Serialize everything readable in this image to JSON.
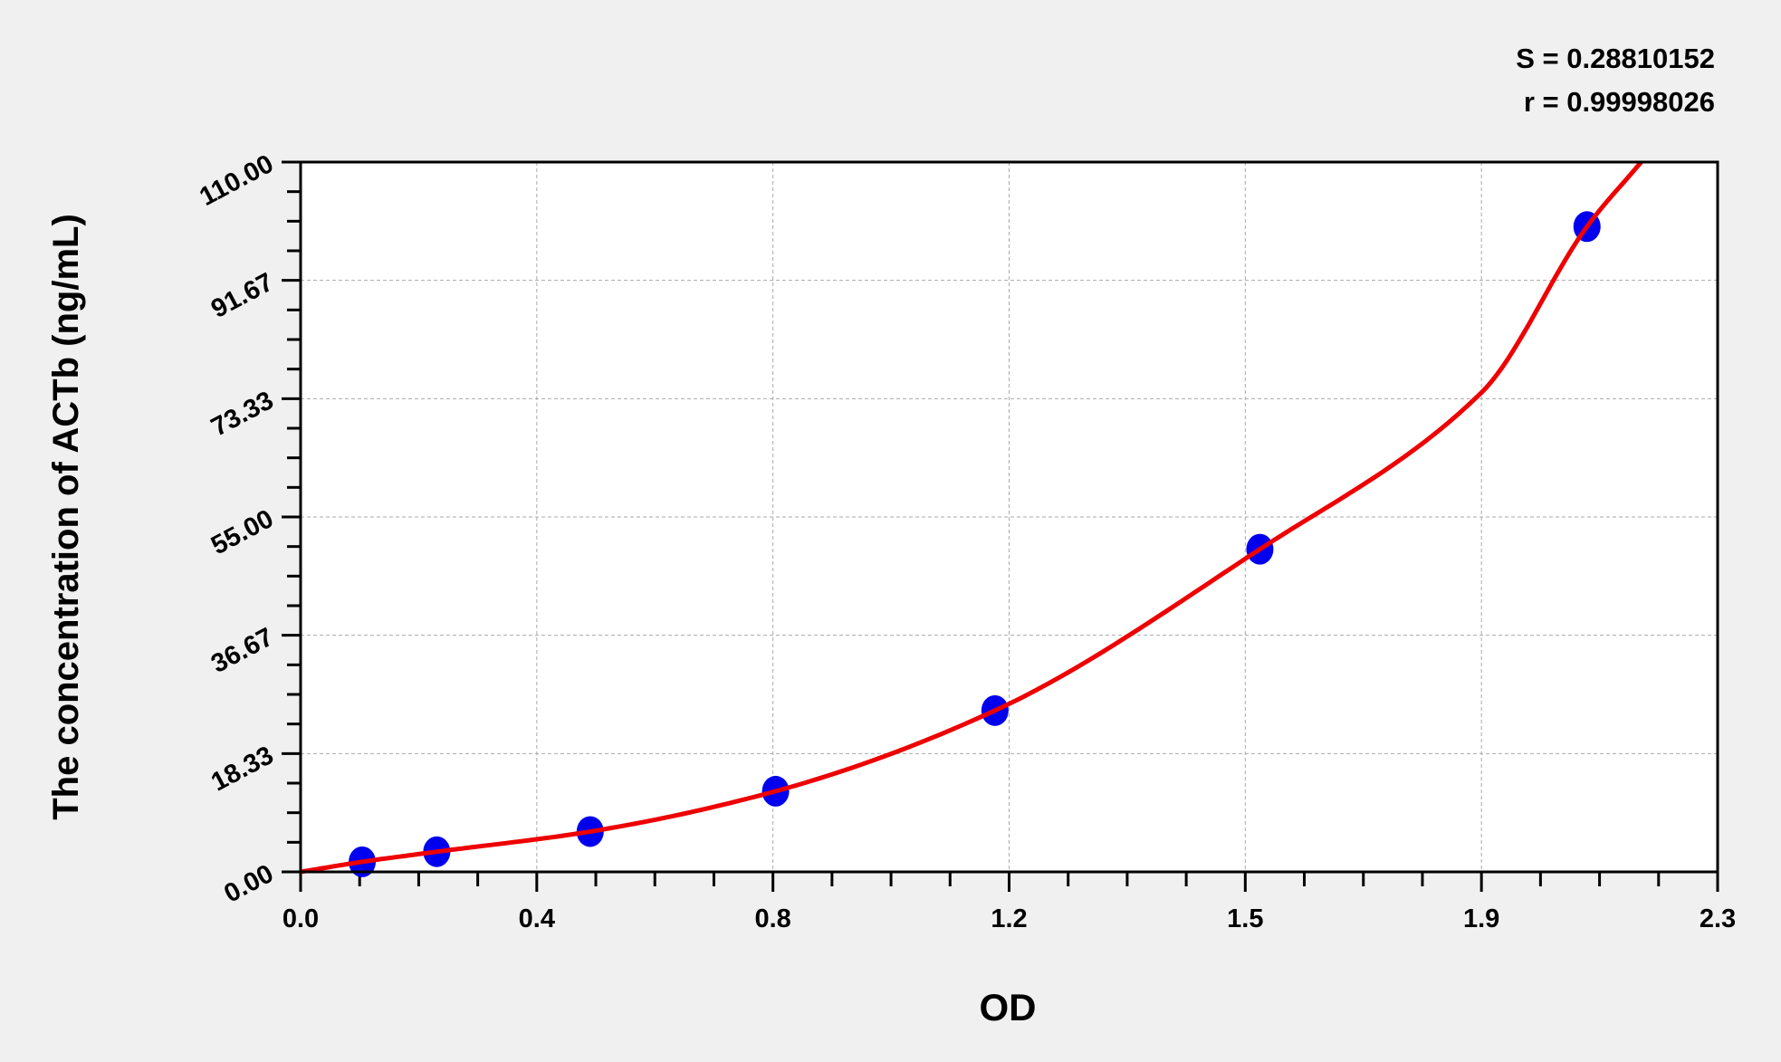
{
  "chart_data": {
    "type": "scatter",
    "xlabel": "OD",
    "ylabel": "The concentration of ACTb (ng/mL)",
    "xlim": [
      0,
      2.3
    ],
    "ylim": [
      0,
      110
    ],
    "x_tick_labels": [
      "0.0",
      "0.4",
      "0.8",
      "1.2",
      "1.5",
      "1.9",
      "2.3"
    ],
    "y_tick_labels": [
      "0.00",
      "18.33",
      "36.67",
      "55.00",
      "73.33",
      "91.67",
      "110.00"
    ],
    "grid": true,
    "annotations": [
      "S = 0.28810152",
      "r = 0.99998026"
    ],
    "points": [
      {
        "x": 0.1,
        "y": 1.56
      },
      {
        "x": 0.221,
        "y": 3.125
      },
      {
        "x": 0.47,
        "y": 6.25
      },
      {
        "x": 0.771,
        "y": 12.5
      },
      {
        "x": 1.127,
        "y": 25
      },
      {
        "x": 1.557,
        "y": 50
      },
      {
        "x": 2.088,
        "y": 100
      }
    ],
    "fit_curve": [
      [
        0,
        0
      ],
      [
        0.1,
        1.56
      ],
      [
        0.221,
        3.125
      ],
      [
        0.47,
        6.25
      ],
      [
        0.771,
        12.5
      ],
      [
        1.127,
        25
      ],
      [
        1.557,
        50
      ],
      [
        1.917,
        74.3
      ],
      [
        2.088,
        100
      ],
      [
        2.176,
        110
      ]
    ],
    "colors": {
      "points": "#0000ee",
      "curve": "#ee0000",
      "background": "#f0f0f0",
      "plot_area": "#ffffff"
    }
  }
}
